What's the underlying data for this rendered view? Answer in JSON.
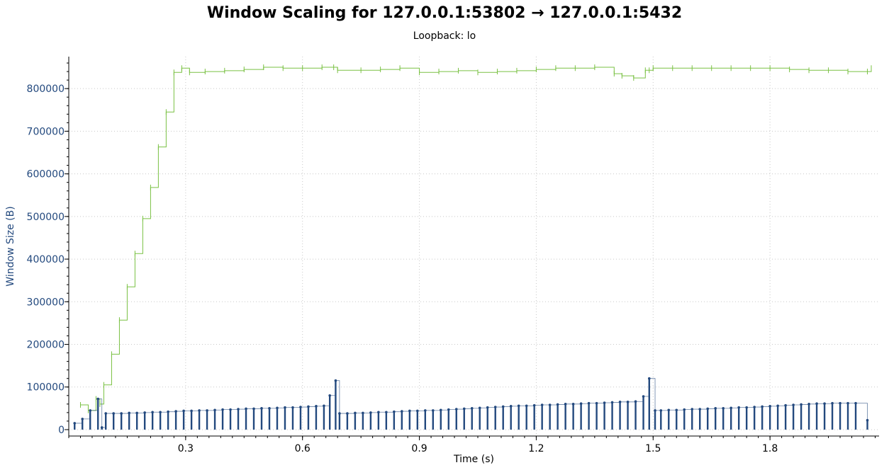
{
  "chart_data": {
    "type": "line",
    "title": "Window Scaling for 127.0.0.1:53802 → 127.0.0.1:5432",
    "subtitle": "Loopback: lo",
    "xlabel": "Time (s)",
    "ylabel": "Window Size (B)",
    "xlim": [
      0.0,
      2.08
    ],
    "ylim": [
      -15000,
      875000
    ],
    "x_ticks": [
      0.3,
      0.6,
      0.9,
      1.2,
      1.5,
      1.8
    ],
    "x_tick_labels": [
      "0.3",
      "0.6",
      "0.9",
      "1.2",
      "1.5",
      "1.8"
    ],
    "y_ticks": [
      0,
      100000,
      200000,
      300000,
      400000,
      500000,
      600000,
      700000,
      800000
    ],
    "y_tick_labels": [
      "0",
      "100000",
      "200000",
      "300000",
      "400000",
      "500000",
      "600000",
      "700000",
      "800000"
    ],
    "grid": true,
    "colors": {
      "receive_window": "#7ac143",
      "bytes_in_flight": "#23497e",
      "axis_label": "#23497e"
    },
    "series": [
      {
        "style": "step",
        "color": "#7ac143",
        "x": [
          0.03,
          0.05,
          0.07,
          0.08,
          0.09,
          0.11,
          0.13,
          0.15,
          0.17,
          0.19,
          0.21,
          0.23,
          0.25,
          0.27,
          0.29,
          0.31,
          0.35,
          0.4,
          0.45,
          0.5,
          0.55,
          0.6,
          0.65,
          0.68,
          0.69,
          0.75,
          0.8,
          0.85,
          0.9,
          0.95,
          1.0,
          1.05,
          1.1,
          1.15,
          1.2,
          1.25,
          1.3,
          1.35,
          1.4,
          1.42,
          1.45,
          1.48,
          1.49,
          1.5,
          1.55,
          1.6,
          1.65,
          1.7,
          1.75,
          1.8,
          1.85,
          1.9,
          1.95,
          2.0,
          2.05,
          2.06
        ],
        "values": [
          58000,
          45000,
          72000,
          60000,
          105000,
          177000,
          257000,
          335000,
          413000,
          495000,
          568000,
          663000,
          745000,
          838000,
          848000,
          838000,
          840000,
          842000,
          845000,
          850000,
          848000,
          848000,
          850000,
          850000,
          843000,
          843000,
          845000,
          848000,
          838000,
          840000,
          842000,
          838000,
          840000,
          842000,
          845000,
          848000,
          848000,
          850000,
          835000,
          830000,
          825000,
          843000,
          843000,
          848000,
          848000,
          848000,
          848000,
          848000,
          848000,
          848000,
          845000,
          843000,
          843000,
          840000,
          840000,
          848000
        ]
      },
      {
        "style": "stem",
        "color": "#23497e",
        "x": [
          0.015,
          0.035,
          0.055,
          0.075,
          0.085,
          0.095,
          0.115,
          0.135,
          0.155,
          0.175,
          0.195,
          0.215,
          0.235,
          0.255,
          0.275,
          0.295,
          0.315,
          0.335,
          0.355,
          0.375,
          0.395,
          0.415,
          0.435,
          0.455,
          0.475,
          0.495,
          0.515,
          0.535,
          0.555,
          0.575,
          0.595,
          0.615,
          0.635,
          0.655,
          0.67,
          0.685,
          0.695,
          0.715,
          0.735,
          0.755,
          0.775,
          0.795,
          0.815,
          0.835,
          0.855,
          0.875,
          0.895,
          0.915,
          0.935,
          0.955,
          0.975,
          0.995,
          1.015,
          1.035,
          1.055,
          1.075,
          1.095,
          1.115,
          1.135,
          1.155,
          1.175,
          1.195,
          1.215,
          1.235,
          1.255,
          1.275,
          1.295,
          1.315,
          1.335,
          1.355,
          1.375,
          1.395,
          1.415,
          1.435,
          1.455,
          1.475,
          1.49,
          1.505,
          1.52,
          1.54,
          1.56,
          1.58,
          1.6,
          1.62,
          1.64,
          1.66,
          1.68,
          1.7,
          1.72,
          1.74,
          1.76,
          1.78,
          1.8,
          1.82,
          1.84,
          1.86,
          1.88,
          1.9,
          1.92,
          1.94,
          1.96,
          1.98,
          2.0,
          2.02,
          2.05
        ],
        "values": [
          15000,
          25000,
          45000,
          72000,
          5000,
          38000,
          38000,
          38000,
          39000,
          39000,
          40000,
          41000,
          41000,
          42000,
          43000,
          44000,
          44000,
          45000,
          45000,
          46000,
          47000,
          47000,
          48000,
          49000,
          49000,
          50000,
          50000,
          51000,
          52000,
          52000,
          53000,
          54000,
          55000,
          56000,
          80000,
          115000,
          38000,
          38000,
          39000,
          39000,
          40000,
          41000,
          41000,
          42000,
          43000,
          44000,
          44000,
          45000,
          45000,
          46000,
          47000,
          48000,
          49000,
          50000,
          51000,
          52000,
          53000,
          54000,
          55000,
          56000,
          56000,
          57000,
          58000,
          58000,
          59000,
          60000,
          60000,
          61000,
          62000,
          62000,
          63000,
          64000,
          65000,
          65000,
          66000,
          78000,
          120000,
          45000,
          45000,
          46000,
          46000,
          47000,
          48000,
          48000,
          49000,
          50000,
          50000,
          51000,
          52000,
          52000,
          53000,
          54000,
          55000,
          56000,
          57000,
          58000,
          59000,
          60000,
          61000,
          61000,
          62000,
          62000,
          62000,
          62000,
          22000
        ]
      }
    ]
  }
}
